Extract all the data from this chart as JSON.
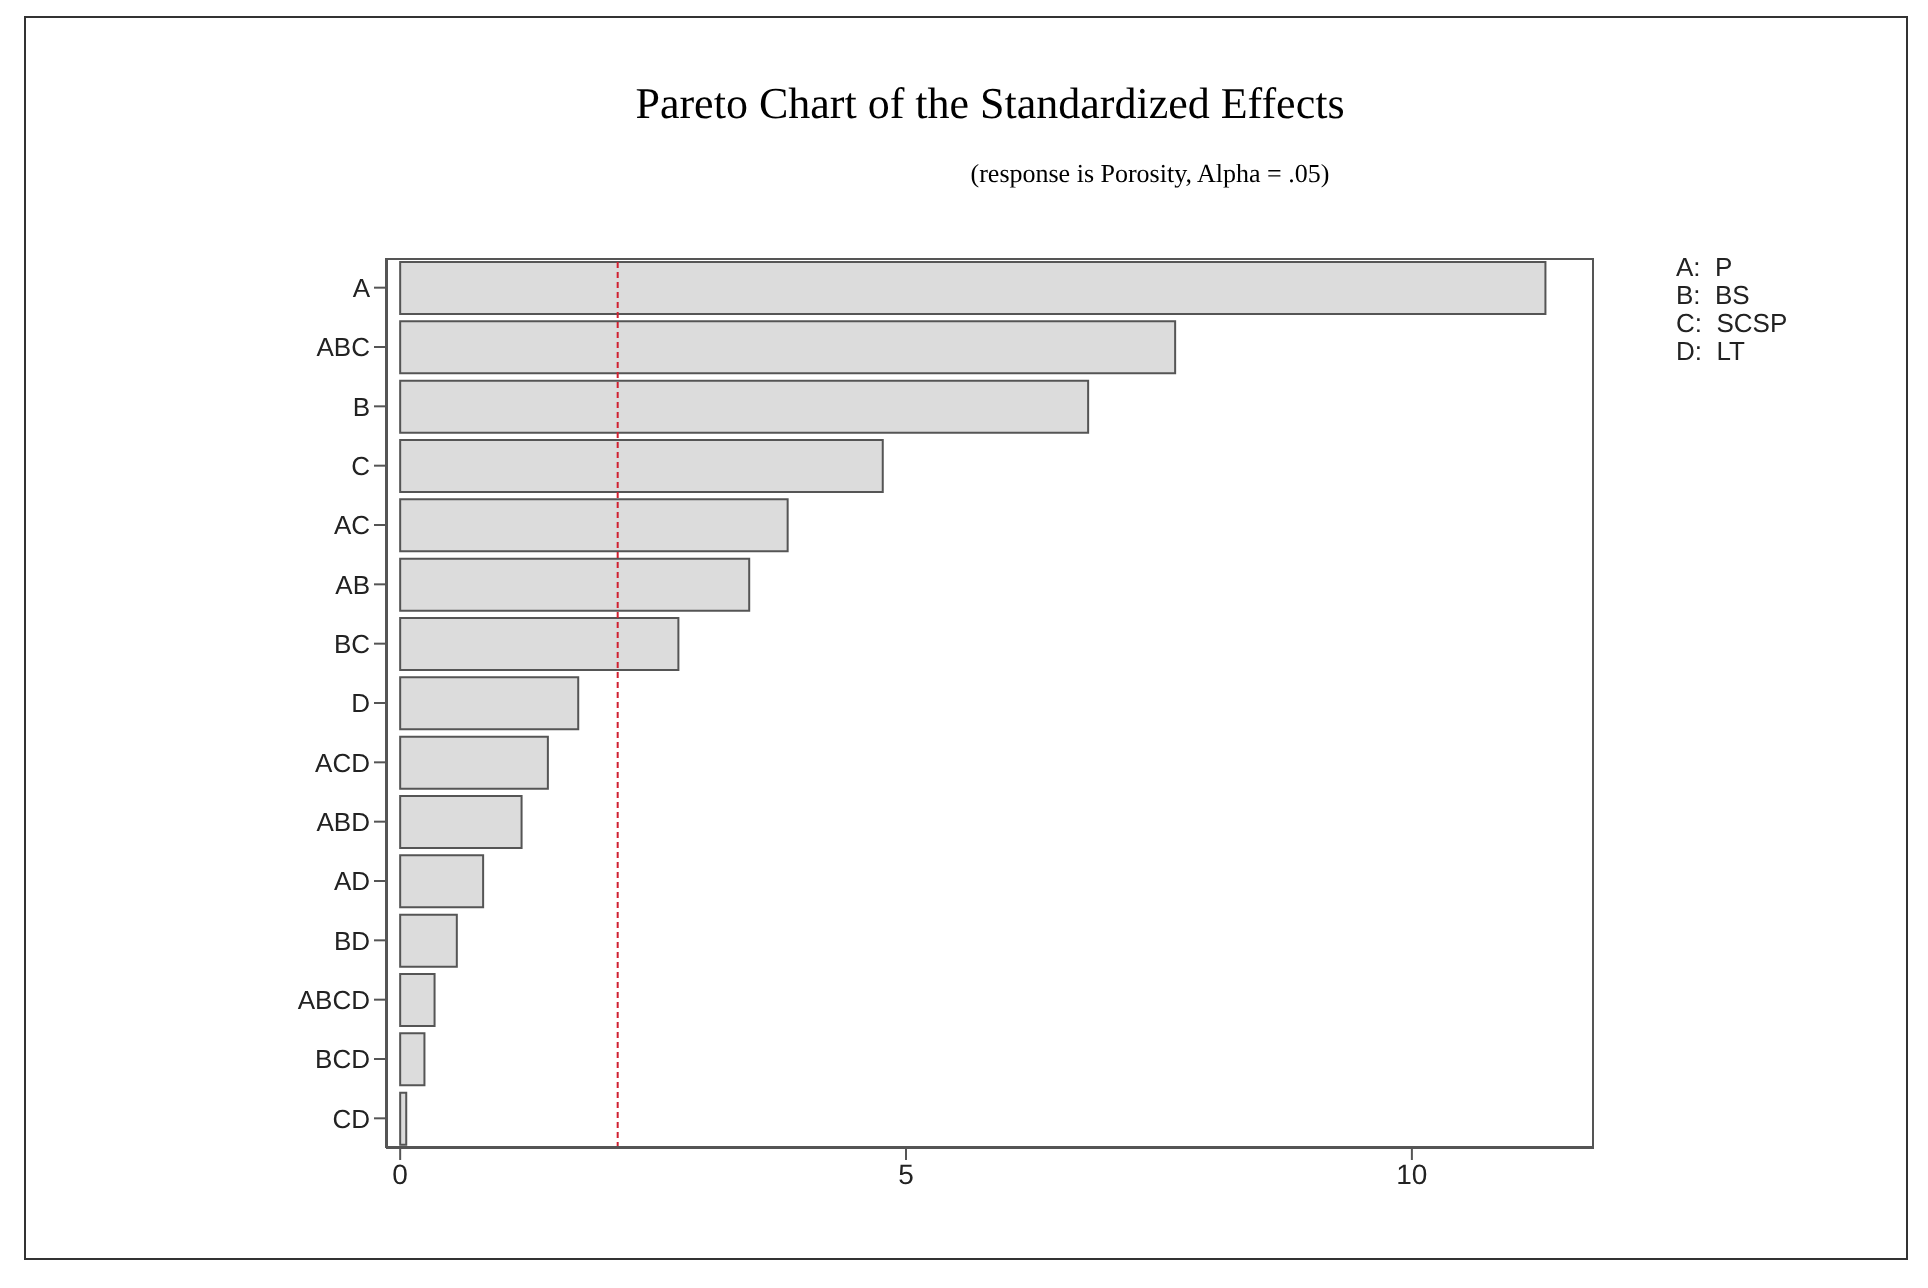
{
  "chart_data": {
    "type": "bar",
    "orientation": "horizontal",
    "title": "Pareto Chart of the Standardized Effects",
    "subtitle": "(response is Porosity, Alpha = .05)",
    "categories": [
      "A",
      "ABC",
      "B",
      "C",
      "AC",
      "AB",
      "BC",
      "D",
      "ACD",
      "ABD",
      "AD",
      "BD",
      "ABCD",
      "BCD",
      "CD"
    ],
    "values": [
      11.32,
      7.66,
      6.8,
      4.77,
      3.83,
      3.45,
      2.75,
      1.76,
      1.46,
      1.2,
      0.82,
      0.56,
      0.34,
      0.24,
      0.06
    ],
    "color": "#dcdcdc",
    "xlim": [
      -0.14,
      11.8
    ],
    "xticks": [
      0,
      5,
      10
    ],
    "ref_lines": [
      {
        "axis": "x",
        "value": 2.15,
        "color": "#d02030",
        "line_style": "dashed"
      }
    ],
    "annotations": [
      "A:  P",
      "B:  BS",
      "C:  SCSP",
      "D:  LT"
    ]
  }
}
